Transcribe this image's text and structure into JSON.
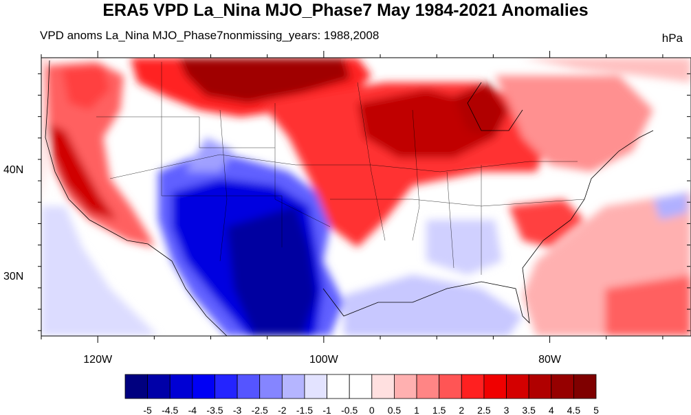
{
  "title": "ERA5 VPD La_Nina MJO_Phase7 May 1984-2021 Anomalies",
  "subtitle_left": "VPD anoms La_Nina MJO_Phase7nonmissing_years: 1988,2008",
  "subtitle_right": "hPa",
  "lat_labels": [
    {
      "text": "40N",
      "value": 40
    },
    {
      "text": "30N",
      "value": 30
    }
  ],
  "lon_labels": [
    {
      "text": "120W",
      "value": -120
    },
    {
      "text": "100W",
      "value": -100
    },
    {
      "text": "80W",
      "value": -80
    }
  ],
  "extent": {
    "lon_min": -125,
    "lon_max": -67.5,
    "lat_min": 24.5,
    "lat_max": 50.5
  },
  "colorbar": {
    "labels": [
      "-5",
      "-4.5",
      "-4",
      "-3.5",
      "-3",
      "-2.5",
      "-2",
      "-1.5",
      "-1",
      "-0.5",
      "0",
      "0.5",
      "1",
      "1.5",
      "2",
      "2.5",
      "3",
      "3.5",
      "4",
      "4.5",
      "5"
    ],
    "colors": [
      "#00007f",
      "#0000a8",
      "#0000d4",
      "#0000f5",
      "#2424ff",
      "#5555ff",
      "#8585ff",
      "#b5b5ff",
      "#e3e3ff",
      "#ffffff",
      "#ffffff",
      "#ffe0e0",
      "#ffb0b0",
      "#ff8585",
      "#ff5555",
      "#ff2020",
      "#f00000",
      "#d40000",
      "#b00000",
      "#960000",
      "#7f0000"
    ]
  }
}
